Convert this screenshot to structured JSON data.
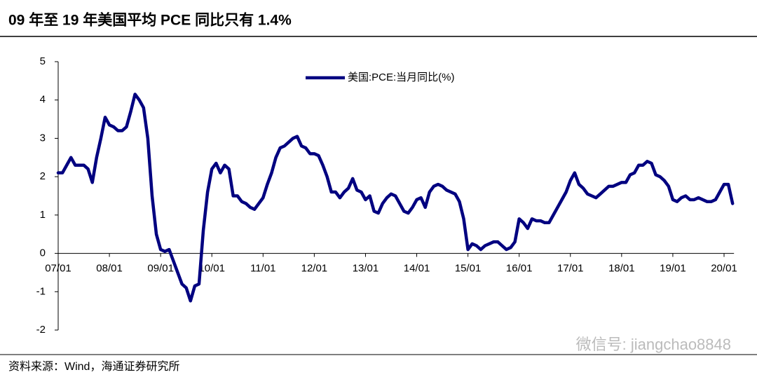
{
  "chart_data": {
    "type": "line",
    "title": "09 年至 19 年美国平均 PCE 同比只有 1.4%",
    "source": "资料来源：Wind，海通证券研究所",
    "watermark": "微信号: jiangchao8848",
    "categories": [
      "07/01",
      null,
      null,
      null,
      null,
      null,
      null,
      null,
      null,
      null,
      null,
      null,
      "08/01",
      null,
      null,
      null,
      null,
      null,
      null,
      null,
      null,
      null,
      null,
      null,
      "09/01",
      null,
      null,
      null,
      null,
      null,
      null,
      null,
      null,
      null,
      null,
      null,
      "10/01",
      null,
      null,
      null,
      null,
      null,
      null,
      null,
      null,
      null,
      null,
      null,
      "11/01",
      null,
      null,
      null,
      null,
      null,
      null,
      null,
      null,
      null,
      null,
      null,
      "12/01",
      null,
      null,
      null,
      null,
      null,
      null,
      null,
      null,
      null,
      null,
      null,
      "13/01",
      null,
      null,
      null,
      null,
      null,
      null,
      null,
      null,
      null,
      null,
      null,
      "14/01",
      null,
      null,
      null,
      null,
      null,
      null,
      null,
      null,
      null,
      null,
      null,
      "15/01",
      null,
      null,
      null,
      null,
      null,
      null,
      null,
      null,
      null,
      null,
      null,
      "16/01",
      null,
      null,
      null,
      null,
      null,
      null,
      null,
      null,
      null,
      null,
      null,
      "17/01",
      null,
      null,
      null,
      null,
      null,
      null,
      null,
      null,
      null,
      null,
      null,
      "18/01",
      null,
      null,
      null,
      null,
      null,
      null,
      null,
      null,
      null,
      null,
      null,
      "19/01",
      null,
      null,
      null,
      null,
      null,
      null,
      null,
      null,
      null,
      null,
      null,
      "20/01",
      null,
      null
    ],
    "series": [
      {
        "name": "美国:PCE:当月同比(%)",
        "color": "#000080",
        "values": [
          2.1,
          2.1,
          2.3,
          2.5,
          2.3,
          2.3,
          2.3,
          2.2,
          1.85,
          2.5,
          3.0,
          3.55,
          3.35,
          3.3,
          3.2,
          3.2,
          3.3,
          3.7,
          4.15,
          4.0,
          3.8,
          3.0,
          1.5,
          0.5,
          0.1,
          0.05,
          0.1,
          -0.2,
          -0.5,
          -0.8,
          -0.9,
          -1.24,
          -0.85,
          -0.8,
          0.6,
          1.6,
          2.2,
          2.35,
          2.1,
          2.3,
          2.2,
          1.5,
          1.5,
          1.35,
          1.3,
          1.2,
          1.15,
          1.3,
          1.45,
          1.8,
          2.1,
          2.5,
          2.75,
          2.8,
          2.9,
          3.0,
          3.05,
          2.8,
          2.75,
          2.6,
          2.6,
          2.55,
          2.3,
          2.0,
          1.6,
          1.6,
          1.45,
          1.6,
          1.7,
          1.95,
          1.65,
          1.6,
          1.4,
          1.5,
          1.1,
          1.05,
          1.3,
          1.45,
          1.55,
          1.5,
          1.3,
          1.1,
          1.05,
          1.2,
          1.4,
          1.45,
          1.2,
          1.6,
          1.75,
          1.8,
          1.75,
          1.65,
          1.6,
          1.55,
          1.35,
          0.9,
          0.1,
          0.25,
          0.2,
          0.1,
          0.2,
          0.25,
          0.3,
          0.3,
          0.2,
          0.1,
          0.15,
          0.3,
          0.9,
          0.8,
          0.65,
          0.9,
          0.85,
          0.85,
          0.8,
          0.8,
          1.0,
          1.2,
          1.4,
          1.6,
          1.9,
          2.1,
          1.8,
          1.7,
          1.55,
          1.5,
          1.45,
          1.55,
          1.65,
          1.75,
          1.75,
          1.8,
          1.85,
          1.85,
          2.05,
          2.1,
          2.3,
          2.3,
          2.4,
          2.35,
          2.05,
          2.0,
          1.9,
          1.75,
          1.4,
          1.35,
          1.45,
          1.5,
          1.4,
          1.4,
          1.45,
          1.4,
          1.35,
          1.35,
          1.4,
          1.6,
          1.8,
          1.8,
          1.3
        ]
      }
    ],
    "ylim": [
      -2,
      5
    ],
    "yticks": [
      -2,
      -1,
      0,
      1,
      2,
      3,
      4,
      5
    ]
  }
}
